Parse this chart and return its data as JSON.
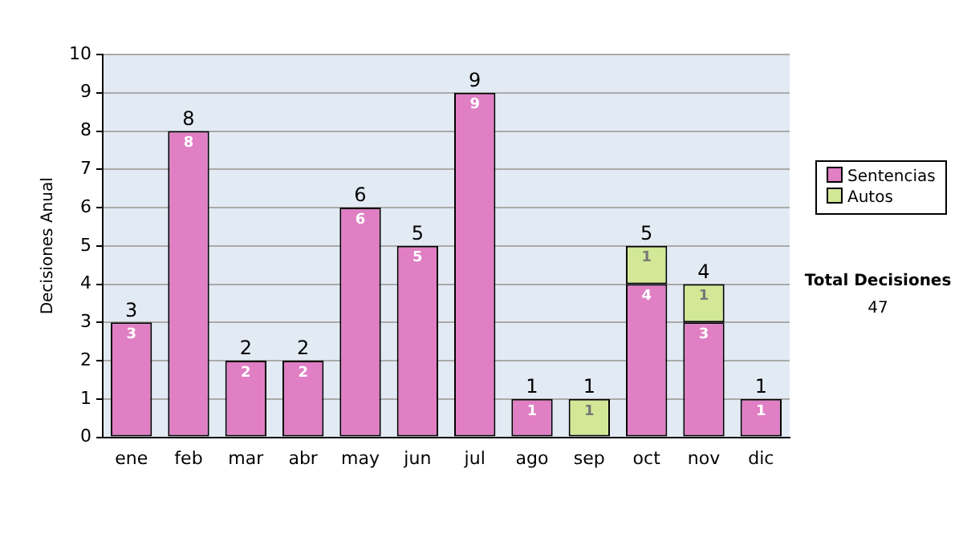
{
  "chart_data": {
    "type": "bar",
    "stacked": true,
    "ylabel": "Decisiones Anual",
    "categories": [
      "ene",
      "feb",
      "mar",
      "abr",
      "may",
      "jun",
      "jul",
      "ago",
      "sep",
      "oct",
      "nov",
      "dic"
    ],
    "series": [
      {
        "name": "Sentencias",
        "color": "#e07fc4",
        "values": [
          3,
          8,
          2,
          2,
          6,
          5,
          9,
          1,
          0,
          4,
          3,
          1
        ],
        "value_labels": [
          "3",
          "8",
          "2",
          "2",
          "6",
          "5",
          "9",
          "1",
          null,
          "4",
          "3",
          "1"
        ]
      },
      {
        "name": "Autos",
        "color": "#d2e896",
        "values": [
          0,
          0,
          0,
          0,
          0,
          0,
          0,
          0,
          1,
          1,
          1,
          0
        ],
        "value_labels": [
          null,
          null,
          null,
          null,
          null,
          null,
          null,
          null,
          "1",
          "1",
          "1",
          null
        ]
      }
    ],
    "totals": [
      "3",
      "8",
      "2",
      "2",
      "6",
      "5",
      "9",
      "1",
      "1",
      "5",
      "4",
      "1"
    ],
    "ylim": [
      0,
      10
    ],
    "yticks": [
      0,
      1,
      2,
      3,
      4,
      5,
      6,
      7,
      8,
      9,
      10
    ],
    "grid": "y",
    "legend": "right",
    "annotations": [
      "Total Decisiones",
      "47"
    ]
  }
}
